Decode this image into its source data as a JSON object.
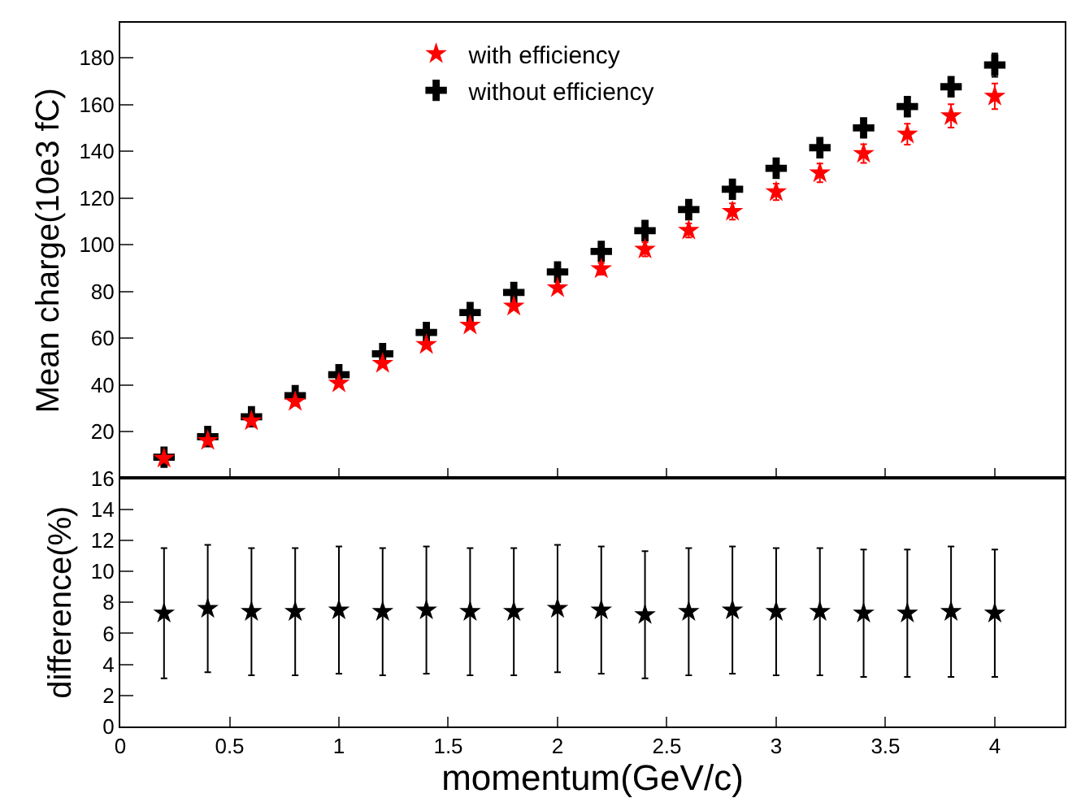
{
  "chart_data": [
    {
      "type": "scatter",
      "ylabel": "Mean charge(10e3 fC)",
      "x": [
        0.2,
        0.4,
        0.6,
        0.8,
        1.0,
        1.2,
        1.4,
        1.6,
        1.8,
        2.0,
        2.2,
        2.4,
        2.6,
        2.8,
        3.0,
        3.2,
        3.4,
        3.6,
        3.8,
        4.0
      ],
      "series": [
        {
          "name": "with efficiency",
          "color": "#ff0000",
          "marker": "star",
          "values": [
            8.5,
            16.1,
            24.5,
            32.8,
            40.7,
            49.1,
            57.2,
            65.5,
            73.6,
            81.5,
            89.6,
            98.0,
            106.1,
            114.2,
            122.6,
            130.7,
            139.0,
            147.3,
            155.1,
            163.5
          ],
          "errors": [
            null,
            null,
            null,
            null,
            null,
            null,
            null,
            null,
            null,
            null,
            2.5,
            3,
            3,
            3.5,
            3.5,
            4,
            4,
            4.5,
            5,
            5.5
          ]
        },
        {
          "name": "without efficiency",
          "color": "#000000",
          "marker": "cross",
          "values": [
            9,
            17.8,
            26.3,
            35.3,
            44.3,
            53.3,
            62.4,
            70.9,
            79.5,
            88.3,
            97.1,
            106.0,
            115.0,
            123.7,
            132.7,
            141.5,
            150.0,
            159.1,
            167.6,
            176.9
          ],
          "errors": [
            null,
            null,
            null,
            null,
            null,
            null,
            null,
            null,
            null,
            null,
            null,
            null,
            null,
            null,
            null,
            null,
            3.5,
            4,
            4,
            5
          ]
        }
      ],
      "xlim": [
        0,
        4.32
      ],
      "xticks": [
        0,
        0.5,
        1,
        1.5,
        2,
        2.5,
        3,
        3.5,
        4
      ],
      "ylim": [
        0,
        195
      ],
      "yticks": [
        20,
        40,
        60,
        80,
        100,
        120,
        140,
        160,
        180
      ],
      "tick_labels": "y",
      "grid": false,
      "legend": "top"
    },
    {
      "type": "scatter",
      "xlabel": "momentum(GeV/c)",
      "ylabel": "difference(%)",
      "x": [
        0.2,
        0.4,
        0.6,
        0.8,
        1.0,
        1.2,
        1.4,
        1.6,
        1.8,
        2.0,
        2.2,
        2.4,
        2.6,
        2.8,
        3.0,
        3.2,
        3.4,
        3.6,
        3.8,
        4.0
      ],
      "series": [
        {
          "color": "#000000",
          "marker": "star",
          "values": [
            7.3,
            7.6,
            7.4,
            7.4,
            7.5,
            7.4,
            7.5,
            7.4,
            7.4,
            7.6,
            7.5,
            7.2,
            7.4,
            7.5,
            7.4,
            7.4,
            7.3,
            7.3,
            7.4,
            7.3
          ],
          "errors": [
            4.2,
            4.1,
            4.1,
            4.1,
            4.1,
            4.1,
            4.1,
            4.1,
            4.1,
            4.1,
            4.1,
            4.1,
            4.1,
            4.1,
            4.1,
            4.1,
            4.1,
            4.1,
            4.2,
            4.1
          ]
        }
      ],
      "xlim": [
        0,
        4.32
      ],
      "xticks": [
        0,
        0.5,
        1,
        1.5,
        2,
        2.5,
        3,
        3.5,
        4
      ],
      "ylim": [
        0,
        16
      ],
      "yticks": [
        0,
        2,
        4,
        6,
        8,
        10,
        12,
        14,
        16
      ],
      "grid": false,
      "legend": false
    }
  ]
}
